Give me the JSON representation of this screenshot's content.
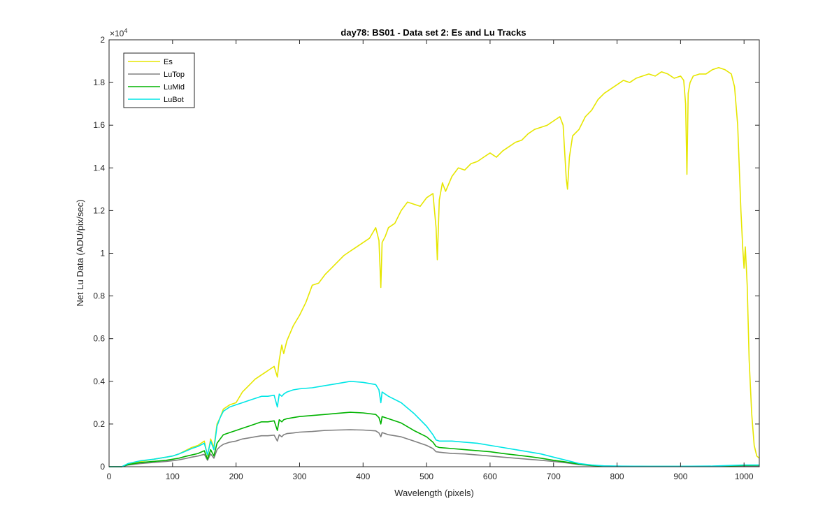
{
  "chart_data": {
    "type": "line",
    "title": "day78: BS01 - Data set 2: Es and Lu Tracks",
    "xlabel": "Wavelength (pixels)",
    "ylabel": "Net Lu Data (ADU/pix/sec)",
    "y_exponent_label": "×10",
    "y_exponent_value": "4",
    "xlim": [
      0,
      1024
    ],
    "ylim": [
      0,
      2
    ],
    "x_ticks": [
      0,
      100,
      200,
      300,
      400,
      500,
      600,
      700,
      800,
      900,
      1000
    ],
    "x_tick_labels": [
      "0",
      "100",
      "200",
      "300",
      "400",
      "500",
      "600",
      "700",
      "800",
      "900",
      "1000"
    ],
    "y_ticks": [
      0,
      0.2,
      0.4,
      0.6,
      0.8,
      1,
      1.2,
      1.4,
      1.6,
      1.8,
      2
    ],
    "y_tick_labels": [
      "0",
      "0.2",
      "0.4",
      "0.6",
      "0.8",
      "1",
      "1.2",
      "1.4",
      "1.6",
      "1.8",
      "2"
    ],
    "grid": false,
    "legend_position": "top-left",
    "series": [
      {
        "name": "Es",
        "color": "#e6e600",
        "x": [
          0,
          20,
          30,
          50,
          70,
          90,
          100,
          110,
          120,
          130,
          140,
          150,
          155,
          160,
          165,
          170,
          175,
          180,
          190,
          200,
          210,
          220,
          230,
          240,
          250,
          260,
          265,
          268,
          272,
          275,
          280,
          290,
          300,
          310,
          320,
          330,
          340,
          350,
          360,
          370,
          380,
          390,
          400,
          410,
          420,
          425,
          428,
          430,
          435,
          440,
          450,
          460,
          470,
          480,
          490,
          500,
          510,
          515,
          517,
          520,
          525,
          530,
          540,
          550,
          560,
          570,
          580,
          590,
          600,
          610,
          620,
          630,
          640,
          650,
          660,
          670,
          680,
          690,
          700,
          710,
          715,
          720,
          722,
          725,
          730,
          740,
          750,
          760,
          770,
          780,
          790,
          800,
          810,
          820,
          830,
          840,
          850,
          860,
          870,
          880,
          890,
          900,
          905,
          908,
          910,
          912,
          915,
          920,
          930,
          940,
          950,
          960,
          970,
          980,
          985,
          990,
          995,
          998,
          1000,
          1002,
          1005,
          1008,
          1012,
          1016,
          1020,
          1024
        ],
        "values": [
          0.0,
          0.0,
          0.01,
          0.025,
          0.035,
          0.045,
          0.05,
          0.06,
          0.075,
          0.09,
          0.1,
          0.12,
          0.05,
          0.13,
          0.09,
          0.2,
          0.23,
          0.27,
          0.29,
          0.3,
          0.35,
          0.38,
          0.41,
          0.43,
          0.45,
          0.47,
          0.42,
          0.5,
          0.57,
          0.53,
          0.59,
          0.66,
          0.71,
          0.77,
          0.85,
          0.86,
          0.9,
          0.93,
          0.96,
          0.99,
          1.01,
          1.03,
          1.05,
          1.07,
          1.12,
          1.06,
          0.84,
          1.05,
          1.08,
          1.12,
          1.14,
          1.2,
          1.24,
          1.23,
          1.22,
          1.26,
          1.28,
          1.12,
          0.97,
          1.25,
          1.33,
          1.29,
          1.36,
          1.4,
          1.39,
          1.42,
          1.43,
          1.45,
          1.47,
          1.45,
          1.48,
          1.5,
          1.52,
          1.53,
          1.56,
          1.58,
          1.59,
          1.6,
          1.62,
          1.64,
          1.6,
          1.35,
          1.3,
          1.45,
          1.55,
          1.58,
          1.64,
          1.67,
          1.72,
          1.75,
          1.77,
          1.79,
          1.81,
          1.8,
          1.82,
          1.83,
          1.84,
          1.83,
          1.85,
          1.84,
          1.82,
          1.83,
          1.81,
          1.7,
          1.37,
          1.75,
          1.8,
          1.83,
          1.84,
          1.84,
          1.86,
          1.87,
          1.86,
          1.84,
          1.78,
          1.6,
          1.2,
          1.02,
          0.93,
          1.03,
          0.85,
          0.5,
          0.25,
          0.1,
          0.05,
          0.04
        ]
      },
      {
        "name": "LuTop",
        "color": "#808080",
        "x": [
          0,
          20,
          30,
          50,
          70,
          90,
          100,
          110,
          120,
          130,
          140,
          150,
          155,
          160,
          165,
          170,
          175,
          180,
          190,
          200,
          210,
          220,
          230,
          240,
          250,
          260,
          265,
          268,
          272,
          275,
          280,
          290,
          300,
          320,
          340,
          360,
          380,
          400,
          420,
          425,
          428,
          430,
          440,
          460,
          480,
          500,
          510,
          515,
          520,
          540,
          560,
          580,
          600,
          620,
          640,
          660,
          680,
          700,
          720,
          740,
          760,
          780,
          800,
          850,
          900,
          950,
          1000,
          1024
        ],
        "values": [
          0.0,
          0.0,
          0.008,
          0.015,
          0.02,
          0.025,
          0.028,
          0.032,
          0.038,
          0.045,
          0.05,
          0.058,
          0.03,
          0.06,
          0.04,
          0.08,
          0.095,
          0.105,
          0.115,
          0.12,
          0.13,
          0.135,
          0.14,
          0.145,
          0.145,
          0.148,
          0.12,
          0.15,
          0.14,
          0.15,
          0.155,
          0.158,
          0.162,
          0.165,
          0.17,
          0.172,
          0.173,
          0.172,
          0.168,
          0.158,
          0.14,
          0.16,
          0.15,
          0.14,
          0.12,
          0.1,
          0.085,
          0.07,
          0.068,
          0.062,
          0.06,
          0.055,
          0.05,
          0.045,
          0.04,
          0.035,
          0.03,
          0.025,
          0.018,
          0.01,
          0.005,
          0.003,
          0.002,
          0.001,
          0.001,
          0.001,
          0.003,
          0.004
        ]
      },
      {
        "name": "LuMid",
        "color": "#00b300",
        "x": [
          0,
          20,
          30,
          50,
          70,
          90,
          100,
          110,
          120,
          130,
          140,
          150,
          155,
          160,
          165,
          170,
          175,
          180,
          190,
          200,
          210,
          220,
          230,
          240,
          250,
          260,
          265,
          268,
          272,
          275,
          280,
          290,
          300,
          320,
          340,
          360,
          380,
          400,
          420,
          425,
          428,
          430,
          440,
          460,
          480,
          500,
          510,
          515,
          520,
          540,
          560,
          580,
          600,
          620,
          640,
          660,
          680,
          700,
          720,
          740,
          760,
          780,
          800,
          850,
          900,
          950,
          1000,
          1024
        ],
        "values": [
          0.0,
          0.0,
          0.01,
          0.02,
          0.025,
          0.03,
          0.035,
          0.04,
          0.048,
          0.055,
          0.062,
          0.075,
          0.035,
          0.08,
          0.05,
          0.11,
          0.13,
          0.15,
          0.16,
          0.17,
          0.18,
          0.19,
          0.2,
          0.21,
          0.21,
          0.215,
          0.17,
          0.22,
          0.21,
          0.22,
          0.225,
          0.23,
          0.235,
          0.24,
          0.245,
          0.25,
          0.255,
          0.252,
          0.245,
          0.23,
          0.2,
          0.235,
          0.225,
          0.205,
          0.17,
          0.14,
          0.115,
          0.095,
          0.09,
          0.085,
          0.08,
          0.075,
          0.07,
          0.062,
          0.055,
          0.048,
          0.04,
          0.03,
          0.022,
          0.012,
          0.006,
          0.003,
          0.002,
          0.001,
          0.001,
          0.002,
          0.006,
          0.007
        ]
      },
      {
        "name": "LuBot",
        "color": "#00e6e6",
        "x": [
          0,
          20,
          30,
          50,
          70,
          90,
          100,
          110,
          120,
          130,
          140,
          150,
          155,
          160,
          165,
          170,
          175,
          180,
          190,
          200,
          210,
          220,
          230,
          240,
          250,
          260,
          265,
          268,
          272,
          275,
          280,
          290,
          300,
          320,
          340,
          360,
          380,
          400,
          420,
          425,
          428,
          430,
          440,
          460,
          480,
          500,
          510,
          515,
          520,
          540,
          560,
          580,
          600,
          620,
          640,
          660,
          680,
          700,
          720,
          740,
          760,
          780,
          800,
          850,
          900,
          950,
          1000,
          1024
        ],
        "values": [
          0.0,
          0.0,
          0.015,
          0.028,
          0.035,
          0.045,
          0.05,
          0.06,
          0.072,
          0.085,
          0.095,
          0.11,
          0.055,
          0.12,
          0.08,
          0.19,
          0.23,
          0.26,
          0.28,
          0.29,
          0.3,
          0.31,
          0.32,
          0.33,
          0.33,
          0.335,
          0.28,
          0.34,
          0.33,
          0.34,
          0.35,
          0.36,
          0.365,
          0.37,
          0.38,
          0.39,
          0.4,
          0.395,
          0.385,
          0.36,
          0.3,
          0.35,
          0.33,
          0.3,
          0.25,
          0.19,
          0.15,
          0.125,
          0.12,
          0.12,
          0.115,
          0.11,
          0.1,
          0.09,
          0.08,
          0.07,
          0.06,
          0.045,
          0.03,
          0.015,
          0.008,
          0.004,
          0.003,
          0.002,
          0.002,
          0.003,
          0.008,
          0.008
        ]
      }
    ]
  }
}
